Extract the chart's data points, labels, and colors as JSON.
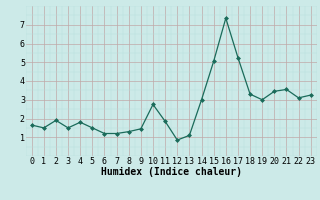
{
  "x": [
    0,
    1,
    2,
    3,
    4,
    5,
    6,
    7,
    8,
    9,
    10,
    11,
    12,
    13,
    14,
    15,
    16,
    17,
    18,
    19,
    20,
    21,
    22,
    23
  ],
  "y": [
    1.65,
    1.5,
    1.9,
    1.5,
    1.8,
    1.5,
    1.2,
    1.2,
    1.3,
    1.45,
    2.75,
    1.85,
    0.85,
    1.1,
    3.0,
    5.05,
    7.35,
    5.25,
    3.3,
    3.0,
    3.45,
    3.55,
    3.1,
    3.25
  ],
  "line_color": "#1a6b5a",
  "marker": "D",
  "marker_size": 2.0,
  "line_width": 0.9,
  "bg_color": "#cceae8",
  "grid_color_major": "#c0a8a8",
  "xlabel": "Humidex (Indice chaleur)",
  "xlabel_fontsize": 7,
  "xlim": [
    -0.5,
    23.5
  ],
  "ylim": [
    0,
    8
  ],
  "yticks": [
    1,
    2,
    3,
    4,
    5,
    6,
    7
  ],
  "xticks": [
    0,
    1,
    2,
    3,
    4,
    5,
    6,
    7,
    8,
    9,
    10,
    11,
    12,
    13,
    14,
    15,
    16,
    17,
    18,
    19,
    20,
    21,
    22,
    23
  ],
  "tick_fontsize": 6
}
